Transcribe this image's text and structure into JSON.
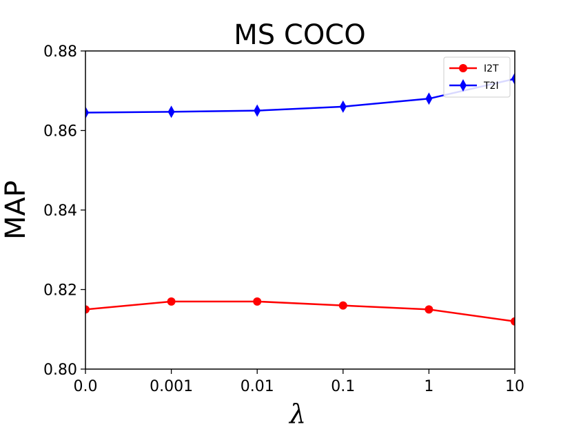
{
  "chart_data": {
    "type": "line",
    "title": "MS COCO",
    "xlabel": "λ",
    "ylabel": "MAP",
    "categories": [
      "0.0",
      "0.001",
      "0.01",
      "0.1",
      "1",
      "10"
    ],
    "ylim": [
      0.8,
      0.88
    ],
    "yticks": [
      "0.80",
      "0.82",
      "0.84",
      "0.86",
      "0.88"
    ],
    "ytick_values": [
      0.8,
      0.82,
      0.84,
      0.86,
      0.88
    ],
    "legend_position": "top-right",
    "series": [
      {
        "name": "I2T",
        "color": "#ff0000",
        "marker": "circle",
        "values": [
          0.815,
          0.817,
          0.817,
          0.816,
          0.815,
          0.812
        ]
      },
      {
        "name": "T2I",
        "color": "#0000ff",
        "marker": "diamond",
        "values": [
          0.8645,
          0.8647,
          0.865,
          0.866,
          0.868,
          0.873
        ]
      }
    ]
  }
}
